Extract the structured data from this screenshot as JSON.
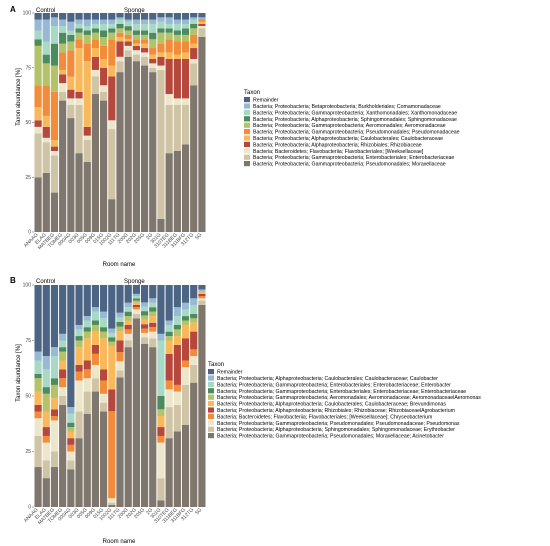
{
  "figure": {
    "panels": [
      "A",
      "B"
    ],
    "group_labels": [
      "Control",
      "Sponge"
    ],
    "legend_title": "Taxon"
  },
  "chart_data": [
    {
      "type": "bar",
      "stacked": true,
      "panel": "A",
      "xlabel": "Room name",
      "ylabel": "Taxon abundance [%]",
      "ylim": [
        0,
        100
      ],
      "yticks": [
        0,
        25,
        50,
        75,
        100
      ],
      "grid": false,
      "legend_placement": "right",
      "groups": [
        {
          "name": "Control",
          "count": 4
        },
        {
          "name": "Sponge",
          "count": 17
        }
      ],
      "categories": [
        "ANAAG",
        "ELAG",
        "MATBEG",
        "TOMEG",
        "000AG",
        "003G",
        "005G",
        "009G",
        "015G",
        "1002G",
        "111TG",
        "200G",
        "202G",
        "205G",
        "2G",
        "301G",
        "310TEG",
        "311BEG",
        "311BFG",
        "312TG",
        "5G"
      ],
      "series": [
        {
          "name": "Remainder",
          "color": "#4c6584",
          "values": [
            3,
            3,
            2,
            3,
            4,
            3,
            3,
            3,
            3,
            3,
            2,
            3,
            3,
            3,
            3,
            2,
            2,
            3,
            3,
            2,
            2
          ]
        },
        {
          "name": "Bacteria; Proteobacteria; Betaproteobacteria; Burkholderiales; Comamonadaceae",
          "color": "#97b9d4",
          "values": [
            5,
            10,
            4,
            3,
            4,
            2,
            3,
            2,
            2,
            2,
            1,
            1,
            2,
            2,
            2,
            2,
            3,
            2,
            2,
            1,
            1
          ]
        },
        {
          "name": "Bacteria; Proteobacteria; Gammaproteobacteria; Xanthomonadales; Xanthomonadaceae",
          "color": "#a7d9c4",
          "values": [
            4,
            6,
            8,
            3,
            2,
            2,
            2,
            2,
            3,
            2,
            2,
            2,
            3,
            3,
            4,
            3,
            2,
            3,
            2,
            2,
            0
          ]
        },
        {
          "name": "Bacteria; Proteobacteria; Alphaproteobacteria; Sphingomonadales; Sphingomonadaceae",
          "color": "#4d8a5e",
          "values": [
            3,
            4,
            10,
            5,
            3,
            2,
            2,
            2,
            3,
            2,
            2,
            2,
            2,
            2,
            3,
            2,
            2,
            2,
            3,
            2,
            0
          ]
        },
        {
          "name": "Bacteria; Proteobacteria; Gammaproteobacteria; Aeromonadales; Aeromonadaceae",
          "color": "#b4c36a",
          "values": [
            18,
            10,
            12,
            4,
            4,
            3,
            4,
            3,
            4,
            3,
            2,
            2,
            2,
            2,
            4,
            5,
            3,
            3,
            3,
            3,
            0
          ]
        },
        {
          "name": "Bacteria; Proteobacteria; Gammaproteobacteria; Pseudomonadales; Pseudomonadaceae",
          "color": "#f28b3a",
          "values": [
            10,
            14,
            22,
            8,
            12,
            4,
            8,
            4,
            6,
            12,
            2,
            2,
            2,
            2,
            3,
            4,
            6,
            6,
            5,
            4,
            1
          ]
        },
        {
          "name": "Bacteria; Proteobacteria; Alphaproteobacteria; Caulobacterales; Caulobacteraceae",
          "color": "#f9b95a",
          "values": [
            6,
            5,
            3,
            2,
            6,
            20,
            30,
            4,
            4,
            5,
            2,
            1,
            1,
            2,
            2,
            2,
            3,
            2,
            3,
            2,
            1
          ]
        },
        {
          "name": "Bacteria; Proteobacteria; Alphaproteobacteria; Rhizobiales; Rhizobiaceae",
          "color": "#b5473c",
          "values": [
            3,
            5,
            2,
            4,
            4,
            3,
            4,
            6,
            8,
            20,
            7,
            2,
            2,
            2,
            2,
            4,
            16,
            18,
            18,
            5,
            1
          ]
        },
        {
          "name": "Bacteria; Bacteroidetes; Flavobacteriia; Flavobacteriales; [Weeksellaceae]",
          "color": "#ede6cb",
          "values": [
            3,
            2,
            2,
            4,
            3,
            3,
            2,
            3,
            3,
            4,
            2,
            2,
            2,
            2,
            2,
            2,
            5,
            3,
            3,
            2,
            1
          ]
        },
        {
          "name": "Bacteria; Proteobacteria; Gammaproteobacteria; Enterobacteriales; Enterobacteriaceae",
          "color": "#cfc4a5",
          "values": [
            20,
            14,
            17,
            4,
            6,
            22,
            10,
            8,
            4,
            32,
            5,
            3,
            3,
            4,
            2,
            68,
            22,
            21,
            18,
            10,
            4
          ]
        },
        {
          "name": "Bacteria; Proteobacteria; Gammaproteobacteria; Pseudomonadales; Moraxellaceae",
          "color": "#7f766d",
          "values": [
            25,
            27,
            18,
            60,
            52,
            36,
            32,
            63,
            60,
            15,
            73,
            80,
            78,
            76,
            73,
            6,
            36,
            37,
            40,
            67,
            90
          ]
        }
      ]
    },
    {
      "type": "bar",
      "stacked": true,
      "panel": "B",
      "xlabel": "Room name",
      "ylabel": "Taxon abundance [%]",
      "ylim": [
        0,
        100
      ],
      "yticks": [
        0,
        25,
        50,
        75,
        100
      ],
      "grid": false,
      "legend_placement": "right",
      "groups": [
        {
          "name": "Control",
          "count": 4
        },
        {
          "name": "Sponge",
          "count": 17
        }
      ],
      "categories": [
        "ANAAG",
        "ELAG",
        "MATBEG",
        "TOMEG",
        "000AG",
        "003G",
        "005G",
        "009G",
        "015G",
        "1002G",
        "111TG",
        "200G",
        "202G",
        "205G",
        "2G",
        "301G",
        "310TEG",
        "311BEG",
        "311BFG",
        "312TG",
        "5G"
      ],
      "series": [
        {
          "name": "Remainder",
          "color": "#4c6584",
          "values": [
            30,
            32,
            28,
            22,
            55,
            18,
            14,
            10,
            12,
            20,
            12,
            8,
            4,
            8,
            6,
            22,
            16,
            10,
            8,
            6,
            2
          ]
        },
        {
          "name": "Bacteria; Proteobacteria; Alphaproteobacteria; Caulobacterales; Caulobacteraceae; Caulobacter",
          "color": "#97b9d4",
          "values": [
            4,
            6,
            4,
            3,
            3,
            2,
            2,
            2,
            3,
            2,
            2,
            2,
            1,
            2,
            2,
            3,
            2,
            4,
            3,
            3,
            1
          ]
        },
        {
          "name": "Bacteria; Proteobacteria; Gammaproteobacteria; Enterobacteriales; Enterobacteriaceae; Enterobacter",
          "color": "#a7d9c4",
          "values": [
            6,
            8,
            10,
            3,
            4,
            3,
            3,
            4,
            4,
            2,
            2,
            2,
            1,
            2,
            2,
            25,
            3,
            4,
            3,
            4,
            0
          ]
        },
        {
          "name": "Bacteria; Proteobacteria; Gammaproteobacteria; Enterobacteriales; Enterobacteriaceae; Enterobacteriaceae",
          "color": "#4d8a5e",
          "values": [
            2,
            3,
            3,
            2,
            2,
            2,
            2,
            2,
            2,
            2,
            2,
            2,
            1,
            2,
            2,
            6,
            2,
            2,
            2,
            2,
            0
          ]
        },
        {
          "name": "Bacteria; Proteobacteria; Gammaproteobacteria; Aeromonadales; Aeromonadaceae; AeromonadaceaelAeromonas",
          "color": "#b4c36a",
          "values": [
            6,
            8,
            6,
            4,
            2,
            3,
            3,
            3,
            3,
            2,
            2,
            2,
            1,
            2,
            2,
            3,
            2,
            3,
            2,
            2,
            0
          ]
        },
        {
          "name": "Bacteria; Proteobacteria; Alphaproteobacteria; Caulobacterales; Caulobacteraceae; Brevundimonas",
          "color": "#f9b95a",
          "values": [
            6,
            7,
            5,
            4,
            3,
            8,
            10,
            6,
            14,
            20,
            4,
            2,
            1,
            2,
            3,
            5,
            6,
            4,
            6,
            4,
            1
          ]
        },
        {
          "name": "Bacteria; Proteobacteria; Alphaproteobacteria; Rhizobiales; Rhizobiaceae; RhizobiaceaelAgrobacterium",
          "color": "#b5473c",
          "values": [
            3,
            4,
            3,
            4,
            3,
            3,
            4,
            4,
            5,
            10,
            5,
            2,
            1,
            2,
            2,
            4,
            12,
            18,
            10,
            8,
            1
          ]
        },
        {
          "name": "Bacteria; Bacteroidetes; Flavobacteriia; Flavobacteriales; [Weeksellaceae]; Chryseobacterium",
          "color": "#f28b3a",
          "values": [
            3,
            3,
            2,
            4,
            3,
            4,
            4,
            5,
            6,
            40,
            4,
            2,
            1,
            2,
            2,
            3,
            4,
            3,
            3,
            3,
            1
          ]
        },
        {
          "name": "Bacteria; Proteobacteria; Gammaproteobacteria; Pseudomonadales; Pseudomonadaceae; Pseudomonas",
          "color": "#ede6cb",
          "values": [
            8,
            8,
            14,
            4,
            4,
            14,
            6,
            6,
            4,
            2,
            4,
            3,
            2,
            2,
            3,
            16,
            8,
            6,
            8,
            4,
            1
          ]
        },
        {
          "name": "Bacteria; Proteobacteria; Alphaproteobacteria; Sphingomonadales; Sphingomonadaceae; Erythrobacter",
          "color": "#cfc4a5",
          "values": [
            14,
            8,
            7,
            4,
            4,
            12,
            10,
            6,
            4,
            1,
            3,
            3,
            2,
            3,
            4,
            10,
            14,
            12,
            18,
            8,
            2
          ]
        },
        {
          "name": "Bacteria; Proteobacteria; Gammaproteobacteria; Pseudomonadales; Moraxellaceae; Acinetobacter",
          "color": "#7f766d",
          "values": [
            18,
            13,
            18,
            46,
            17,
            31,
            42,
            52,
            43,
            1,
            56,
            72,
            85,
            75,
            72,
            3,
            31,
            34,
            37,
            56,
            91
          ]
        }
      ]
    }
  ]
}
